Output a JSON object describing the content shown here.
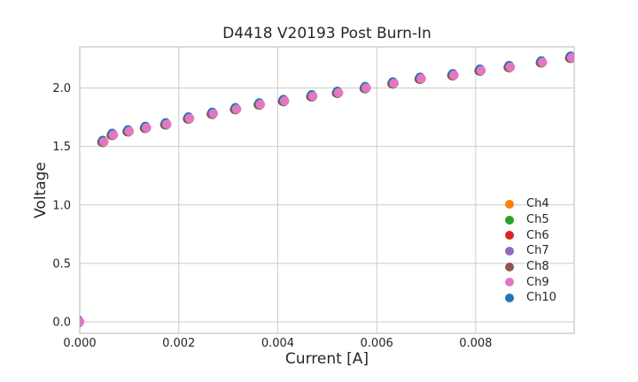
{
  "figure": {
    "background": "#ffffff",
    "text_color": "#262626",
    "grid_color": "#cccccc",
    "spine_color": "#c6c6c6"
  },
  "chart_data": {
    "type": "scatter",
    "title": "D4418 V20193 Post Burn-In",
    "xlabel": "Current [A]",
    "ylabel": "Voltage",
    "xlim": [
      0,
      0.00999
    ],
    "ylim": [
      -0.098,
      2.352
    ],
    "grid": true,
    "legend_position": "lower right",
    "x_ticks": {
      "values": [
        0,
        0.002,
        0.004,
        0.006,
        0.008
      ],
      "labels": [
        "0.000",
        "0.002",
        "0.004",
        "0.006",
        "0.008"
      ]
    },
    "y_ticks": {
      "values": [
        0,
        0.5,
        1.0,
        1.5,
        2.0
      ],
      "labels": [
        "0.0",
        "0.5",
        "1.0",
        "1.5",
        "2.0"
      ]
    },
    "x": [
      0.0,
      0.00049,
      0.00068,
      0.001,
      0.00135,
      0.00176,
      0.00222,
      0.0027,
      0.00317,
      0.00365,
      0.00414,
      0.00471,
      0.00523,
      0.00579,
      0.00635,
      0.0069,
      0.00756,
      0.00811,
      0.0087,
      0.00935,
      0.00994
    ],
    "y_shared": [
      0.0,
      1.54,
      1.6,
      1.63,
      1.66,
      1.69,
      1.74,
      1.78,
      1.82,
      1.86,
      1.89,
      1.93,
      1.96,
      2.0,
      2.04,
      2.08,
      2.11,
      2.15,
      2.18,
      2.22,
      2.26
    ],
    "series_overlap": true,
    "series": [
      {
        "name": "Ch4",
        "color": "#ff7f0e"
      },
      {
        "name": "Ch5",
        "color": "#2ca02c"
      },
      {
        "name": "Ch6",
        "color": "#d62728"
      },
      {
        "name": "Ch7",
        "color": "#9467bd"
      },
      {
        "name": "Ch8",
        "color": "#8c564b"
      },
      {
        "name": "Ch9",
        "color": "#e377c2"
      },
      {
        "name": "Ch10",
        "color": "#1f77b4"
      }
    ]
  }
}
